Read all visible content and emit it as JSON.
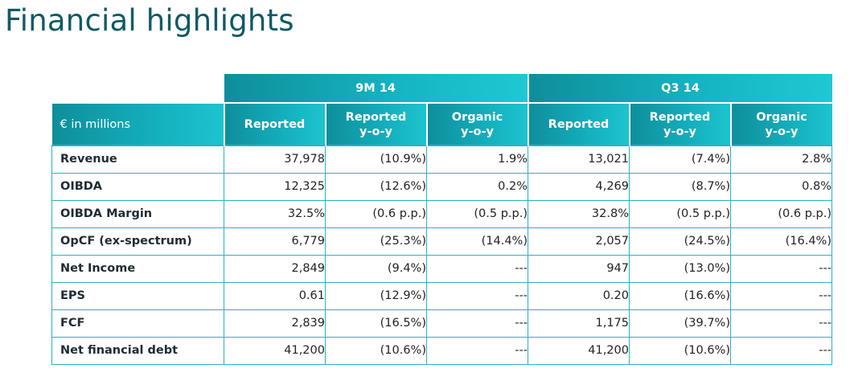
{
  "page": {
    "title": "Financial highlights"
  },
  "table": {
    "group_headers": [
      "9M 14",
      "Q3 14"
    ],
    "label_header": "€ in millions",
    "column_headers": [
      {
        "line1": "Reported",
        "line2": ""
      },
      {
        "line1": "Reported",
        "line2": "y-o-y"
      },
      {
        "line1": "Organic",
        "line2": "y-o-y"
      },
      {
        "line1": "Reported",
        "line2": ""
      },
      {
        "line1": "Reported",
        "line2": "y-o-y"
      },
      {
        "line1": "Organic",
        "line2": "y-o-y"
      }
    ],
    "rows": [
      {
        "label": "Revenue",
        "values": [
          "37,978",
          "(10.9%)",
          "1.9%",
          "13,021",
          "(7.4%)",
          "2.8%"
        ]
      },
      {
        "label": "OIBDA",
        "values": [
          "12,325",
          "(12.6%)",
          "0.2%",
          "4,269",
          "(8.7%)",
          "0.8%"
        ]
      },
      {
        "label": "OIBDA Margin",
        "values": [
          "32.5%",
          "(0.6 p.p.)",
          "(0.5 p.p.)",
          "32.8%",
          "(0.5 p.p.)",
          "(0.6 p.p.)"
        ]
      },
      {
        "label": "OpCF (ex-spectrum)",
        "values": [
          "6,779",
          "(25.3%)",
          "(14.4%)",
          "2,057",
          "(24.5%)",
          "(16.4%)"
        ]
      },
      {
        "label": "Net Income",
        "values": [
          "2,849",
          "(9.4%)",
          "---",
          "947",
          "(13.0%)",
          "---"
        ]
      },
      {
        "label": "EPS",
        "values": [
          "0.61",
          "(12.9%)",
          "---",
          "0.20",
          "(16.6%)",
          "---"
        ]
      },
      {
        "label": "FCF",
        "values": [
          "2,839",
          "(16.5%)",
          "---",
          "1,175",
          "(39.7%)",
          "---"
        ]
      },
      {
        "label": "Net financial debt",
        "values": [
          "41,200",
          "(10.6%)",
          "---",
          "41,200",
          "(10.6%)",
          "---"
        ]
      }
    ]
  }
}
